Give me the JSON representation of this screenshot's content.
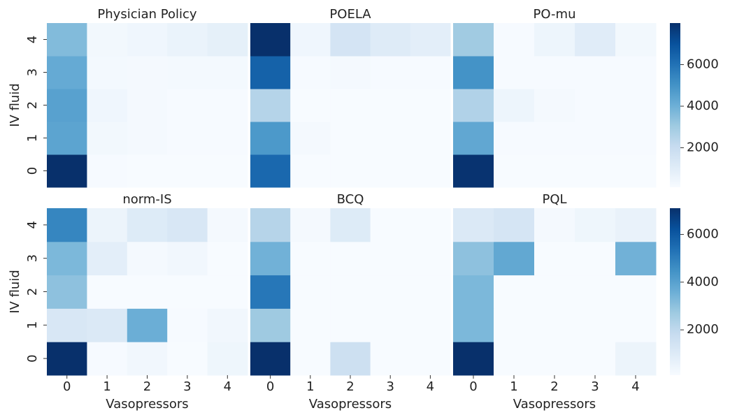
{
  "chart_data": [
    {
      "type": "heatmap",
      "title": "Physician Policy",
      "ylabel": "IV fluid",
      "y": [
        0,
        1,
        2,
        3,
        4
      ],
      "colormap": "Blues",
      "zlim": [
        100,
        8000
      ],
      "values": [
        [
          8000,
          150,
          100,
          100,
          100
        ],
        [
          4400,
          300,
          200,
          150,
          150
        ],
        [
          4500,
          400,
          200,
          150,
          150
        ],
        [
          4200,
          250,
          200,
          250,
          250
        ],
        [
          3600,
          300,
          400,
          600,
          800
        ]
      ]
    },
    {
      "type": "heatmap",
      "title": "POELA",
      "colormap": "Blues",
      "zlim": [
        100,
        8000
      ],
      "values": [
        [
          6300,
          100,
          100,
          100,
          100
        ],
        [
          4800,
          200,
          100,
          100,
          100
        ],
        [
          2500,
          100,
          100,
          100,
          100
        ],
        [
          6500,
          150,
          200,
          150,
          150
        ],
        [
          8000,
          400,
          1500,
          1100,
          900
        ]
      ]
    },
    {
      "type": "heatmap",
      "title": "PO-mu",
      "colormap": "Blues",
      "zlim": [
        100,
        8000
      ],
      "zticks": [
        2000,
        4000,
        6000
      ],
      "values": [
        [
          7900,
          100,
          100,
          100,
          100
        ],
        [
          4300,
          150,
          150,
          150,
          150
        ],
        [
          2600,
          500,
          200,
          150,
          150
        ],
        [
          5000,
          150,
          150,
          150,
          150
        ],
        [
          3000,
          150,
          500,
          1000,
          300
        ]
      ]
    },
    {
      "type": "heatmap",
      "title": "norm-IS",
      "xlabel": "Vasopressors",
      "ylabel": "IV fluid",
      "x": [
        0,
        1,
        2,
        3,
        4
      ],
      "y": [
        0,
        1,
        2,
        3,
        4
      ],
      "colormap": "Blues",
      "zlim": [
        100,
        7100
      ],
      "values": [
        [
          7100,
          150,
          300,
          100,
          400
        ],
        [
          1200,
          1100,
          3600,
          150,
          300
        ],
        [
          3000,
          100,
          100,
          100,
          100
        ],
        [
          3300,
          800,
          200,
          300,
          100
        ],
        [
          4800,
          500,
          1000,
          1200,
          200
        ]
      ]
    },
    {
      "type": "heatmap",
      "title": "BCQ",
      "xlabel": "Vasopressors",
      "x": [
        0,
        1,
        2,
        3,
        4
      ],
      "colormap": "Blues",
      "zlim": [
        100,
        7100
      ],
      "values": [
        [
          7100,
          100,
          1600,
          100,
          100
        ],
        [
          2700,
          100,
          100,
          100,
          100
        ],
        [
          5200,
          100,
          100,
          100,
          100
        ],
        [
          3500,
          100,
          100,
          100,
          100
        ],
        [
          2200,
          200,
          1000,
          100,
          100
        ]
      ]
    },
    {
      "type": "heatmap",
      "title": "PQL",
      "xlabel": "Vasopressors",
      "x": [
        0,
        1,
        2,
        3,
        4
      ],
      "colormap": "Blues",
      "zlim": [
        100,
        7100
      ],
      "zticks": [
        2000,
        4000,
        6000
      ],
      "values": [
        [
          7100,
          100,
          100,
          100,
          500
        ],
        [
          3300,
          100,
          100,
          100,
          100
        ],
        [
          3300,
          100,
          100,
          100,
          100
        ],
        [
          3000,
          3800,
          100,
          100,
          3500
        ],
        [
          1100,
          1300,
          200,
          400,
          600
        ]
      ]
    }
  ]
}
